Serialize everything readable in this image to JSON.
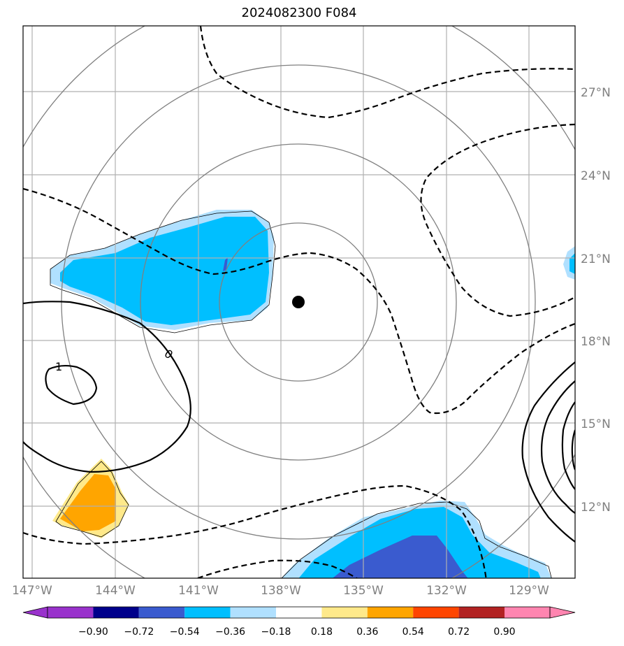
{
  "title": "2024082300 F084",
  "map": {
    "lon_labels": [
      "147°W",
      "144°W",
      "141°W",
      "138°W",
      "135°W",
      "132°W",
      "129°W"
    ],
    "lat_labels": [
      "27°N",
      "24°N",
      "21°N",
      "18°N",
      "15°N",
      "12°N"
    ],
    "contour_labels": [
      "1",
      "0"
    ],
    "center_marker": "storm-center-dot"
  },
  "colorbar": {
    "labels": [
      "−0.90",
      "−0.72",
      "−0.54",
      "−0.36",
      "−0.18",
      "0.18",
      "0.36",
      "0.54",
      "0.72",
      "0.90"
    ],
    "colors": [
      "#9932CC",
      "#00008B",
      "#3A5BCF",
      "#00BFFF",
      "#B0E0FF",
      "#FFFFFF",
      "#FFE98A",
      "#FFA500",
      "#FF4500",
      "#B22222",
      "#FF85B0"
    ]
  }
}
